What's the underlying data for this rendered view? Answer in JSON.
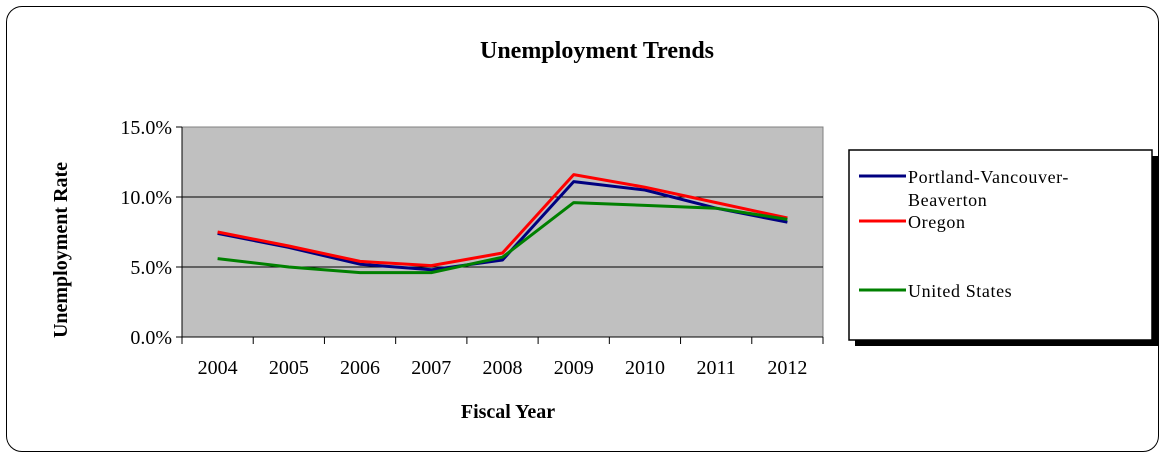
{
  "chart_data": {
    "type": "line",
    "title": "Unemployment Trends",
    "xlabel": "Fiscal Year",
    "ylabel": "Unemployment Rate",
    "categories": [
      "2004",
      "2005",
      "2006",
      "2007",
      "2008",
      "2009",
      "2010",
      "2011",
      "2012"
    ],
    "yticks": [
      "0.0%",
      "5.0%",
      "10.0%",
      "15.0%"
    ],
    "ylim": [
      0,
      15
    ],
    "grid": true,
    "legend_position": "right",
    "series": [
      {
        "name": "Portland-Vancouver-Beaverton",
        "name_lines": [
          "Portland-Vancouver-",
          "Beaverton"
        ],
        "color": "#000080",
        "values": [
          7.4,
          6.4,
          5.2,
          4.8,
          5.5,
          11.1,
          10.5,
          9.2,
          8.2
        ]
      },
      {
        "name": "Oregon",
        "name_lines": [
          "Oregon"
        ],
        "color": "#ff0000",
        "values": [
          7.5,
          6.5,
          5.4,
          5.1,
          6.0,
          11.6,
          10.7,
          9.6,
          8.5
        ]
      },
      {
        "name": "United States",
        "name_lines": [
          "United States"
        ],
        "color": "#008000",
        "values": [
          5.6,
          5.0,
          4.6,
          4.6,
          5.7,
          9.6,
          9.4,
          9.2,
          8.4
        ]
      }
    ]
  }
}
